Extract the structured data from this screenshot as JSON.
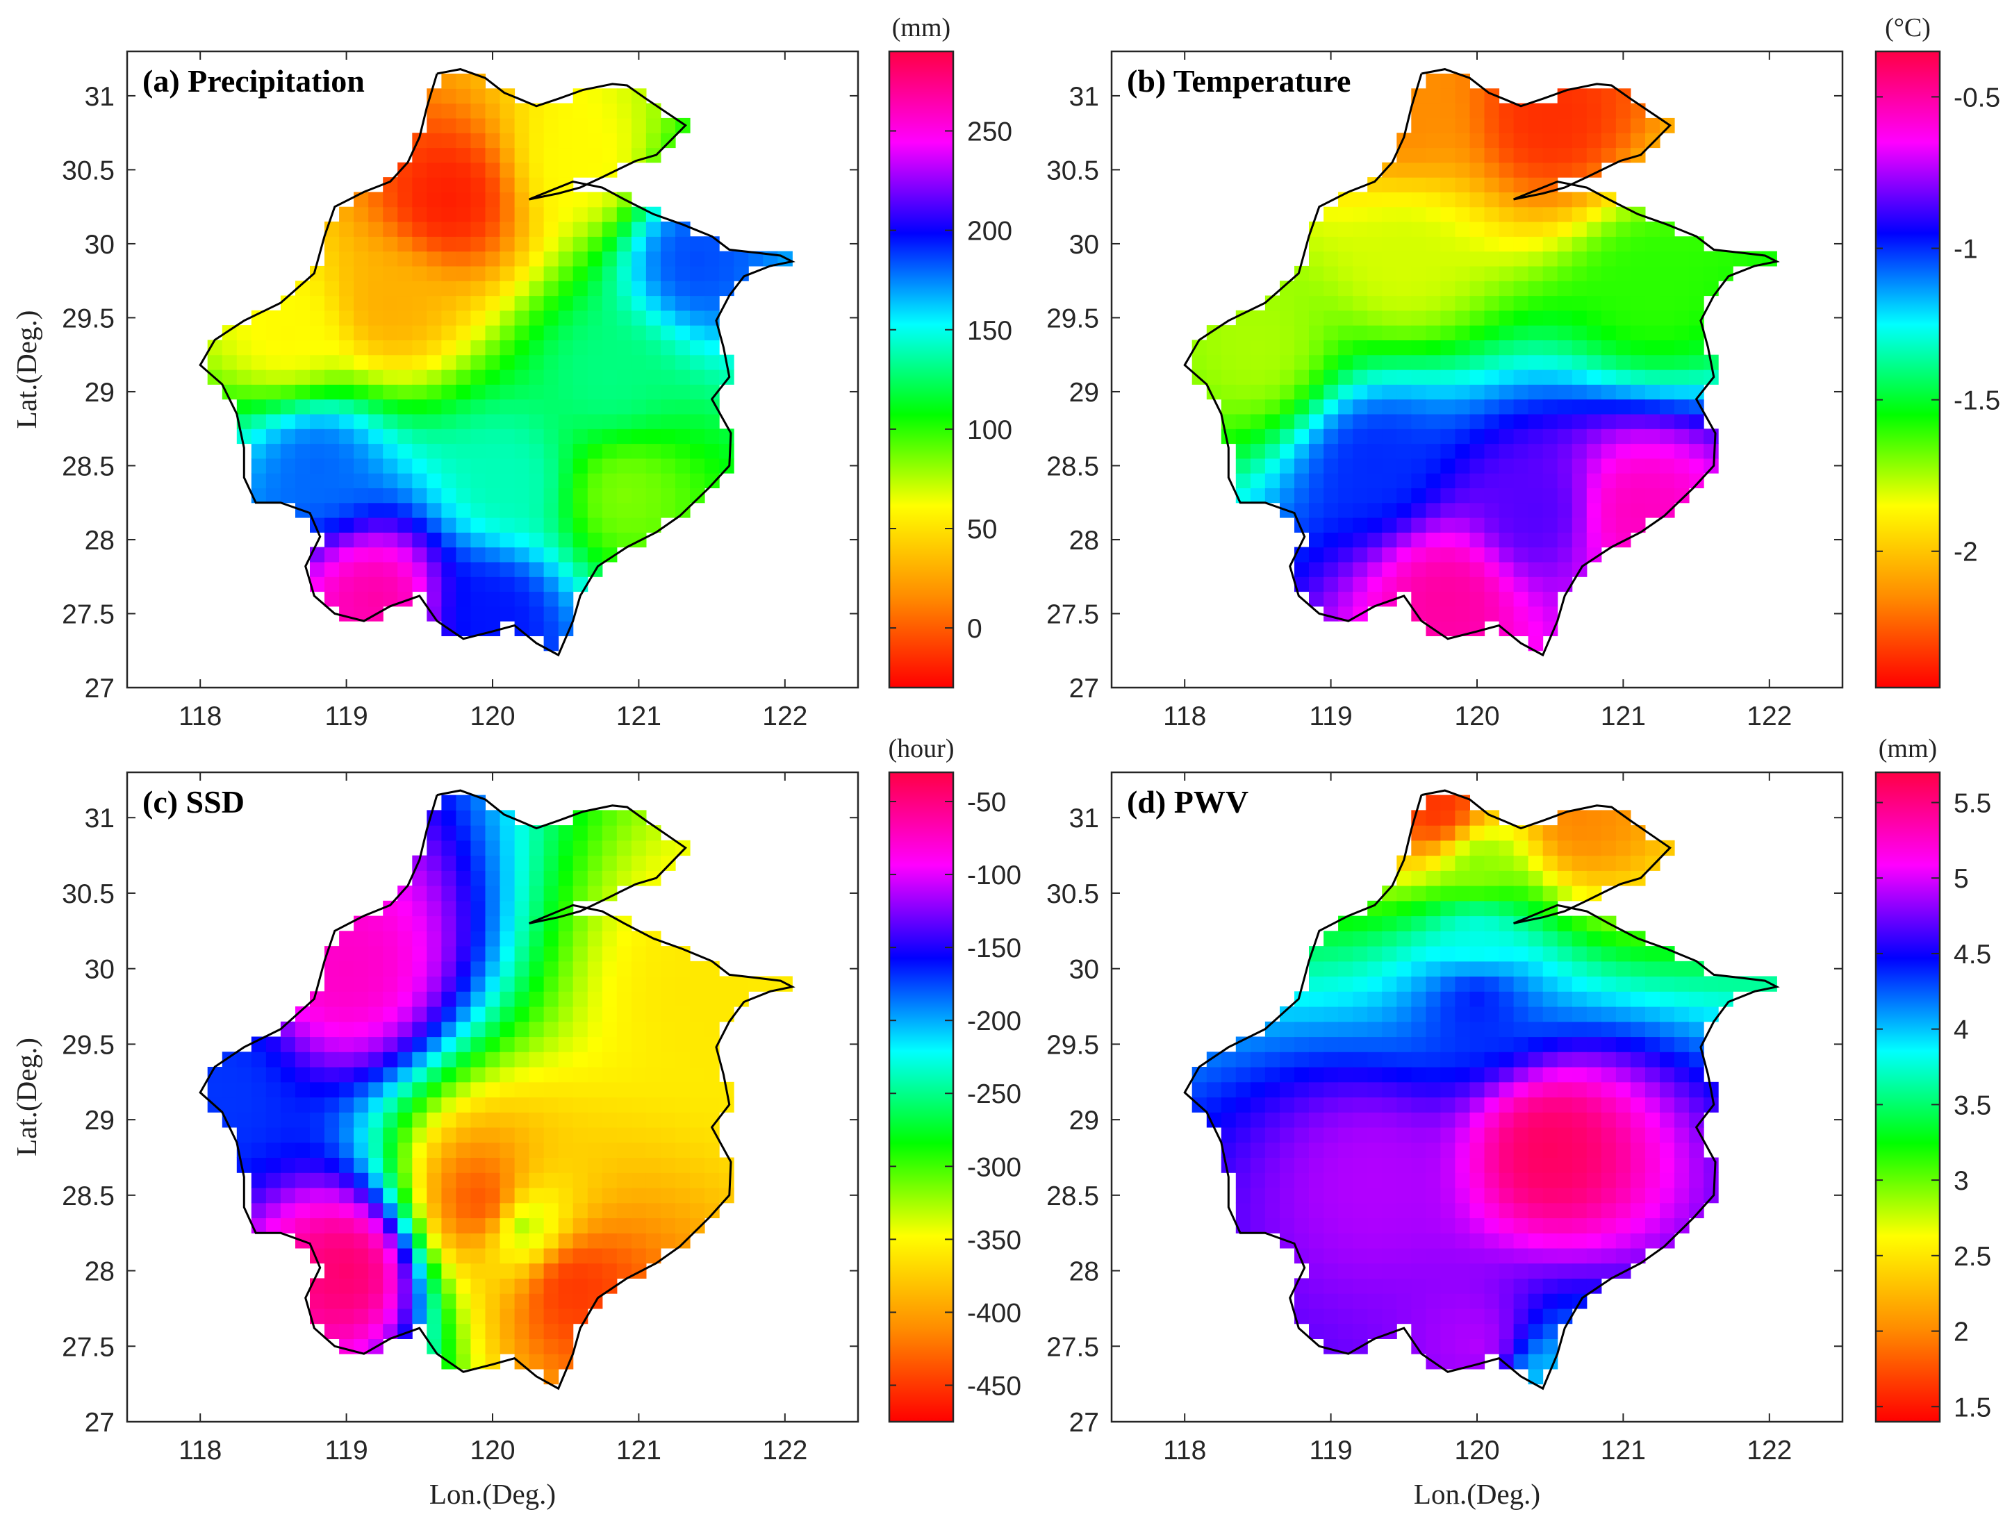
{
  "figure": {
    "xlabel": "Lon.(Deg.)",
    "ylabel": "Lat.(Deg.)"
  },
  "chart_data": [
    {
      "type": "heatmap",
      "title": "(a) Precipitation",
      "xlabel": "",
      "ylabel": "Lat.(Deg.)",
      "xlim": [
        117.5,
        122.5
      ],
      "ylim": [
        27,
        31.3
      ],
      "x_ticks": [
        "118",
        "119",
        "120",
        "121",
        "122"
      ],
      "y_ticks": [
        "27",
        "27.5",
        "28",
        "28.5",
        "29",
        "29.5",
        "30",
        "30.5",
        "31"
      ],
      "colorbar": {
        "unit": "(mm)",
        "range": [
          -30,
          290
        ],
        "ticks": [
          "0",
          "50",
          "100",
          "150",
          "200",
          "250"
        ]
      },
      "colormap": [
        "#ff0000",
        "#ff8c00",
        "#ffff00",
        "#00ff00",
        "#00ffff",
        "#0000ff",
        "#ff00ff",
        "#ff0044"
      ],
      "hotspots": [
        {
          "lon": 119.7,
          "lat": 30.3,
          "value": -20
        },
        {
          "lon": 119.3,
          "lat": 29.6,
          "value": 30
        },
        {
          "lon": 118.6,
          "lat": 29.4,
          "value": 60
        },
        {
          "lon": 120.6,
          "lat": 30.55,
          "value": 60
        },
        {
          "lon": 121.4,
          "lat": 29.9,
          "value": 185
        },
        {
          "lon": 120.8,
          "lat": 29.1,
          "value": 130
        },
        {
          "lon": 118.8,
          "lat": 28.5,
          "value": 180
        },
        {
          "lon": 119.2,
          "lat": 27.6,
          "value": 265
        },
        {
          "lon": 120.0,
          "lat": 27.5,
          "value": 195
        },
        {
          "lon": 120.9,
          "lat": 28.3,
          "value": 85
        },
        {
          "lon": 120.1,
          "lat": 28.4,
          "value": 140
        }
      ]
    },
    {
      "type": "heatmap",
      "title": "(b) Temperature",
      "xlabel": "",
      "ylabel": "",
      "xlim": [
        117.5,
        122.5
      ],
      "ylim": [
        27,
        31.3
      ],
      "x_ticks": [
        "118",
        "119",
        "120",
        "121",
        "122"
      ],
      "y_ticks": [
        "27",
        "27.5",
        "28",
        "28.5",
        "29",
        "29.5",
        "30",
        "30.5",
        "31"
      ],
      "colorbar": {
        "unit": "(°C)",
        "range": [
          -2.45,
          -0.35
        ],
        "ticks": [
          "-2",
          "-1.5",
          "-1",
          "-0.5"
        ]
      },
      "colormap": [
        "#ff0000",
        "#ff8c00",
        "#ffff00",
        "#00ff00",
        "#00ffff",
        "#0000ff",
        "#ff00ff",
        "#ff0044"
      ],
      "hotspots": [
        {
          "lon": 120.5,
          "lat": 30.85,
          "value": -2.35
        },
        {
          "lon": 119.5,
          "lat": 30.9,
          "value": -2.15
        },
        {
          "lon": 119.5,
          "lat": 29.9,
          "value": -1.8
        },
        {
          "lon": 118.5,
          "lat": 29.3,
          "value": -1.75
        },
        {
          "lon": 121.2,
          "lat": 29.7,
          "value": -1.6
        },
        {
          "lon": 119.3,
          "lat": 28.5,
          "value": -1.0
        },
        {
          "lon": 120.4,
          "lat": 28.2,
          "value": -0.85
        },
        {
          "lon": 119.8,
          "lat": 27.6,
          "value": -0.5
        },
        {
          "lon": 121.1,
          "lat": 28.2,
          "value": -0.55
        }
      ]
    },
    {
      "type": "heatmap",
      "title": "(c) SSD",
      "xlabel": "Lon.(Deg.)",
      "ylabel": "Lat.(Deg.)",
      "xlim": [
        117.5,
        122.5
      ],
      "ylim": [
        27,
        31.3
      ],
      "x_ticks": [
        "118",
        "119",
        "120",
        "121",
        "122"
      ],
      "y_ticks": [
        "27",
        "27.5",
        "28",
        "28.5",
        "29",
        "29.5",
        "30",
        "30.5",
        "31"
      ],
      "colorbar": {
        "unit": "(hour)",
        "range": [
          -475,
          -30
        ],
        "ticks": [
          "-450",
          "-400",
          "-350",
          "-300",
          "-250",
          "-200",
          "-150",
          "-100",
          "-50"
        ]
      },
      "colormap": [
        "#ff0000",
        "#ff8c00",
        "#ffff00",
        "#00ff00",
        "#00ffff",
        "#0000ff",
        "#ff00ff",
        "#ff0044"
      ],
      "hotspots": [
        {
          "lon": 119.0,
          "lat": 28.0,
          "value": -45
        },
        {
          "lon": 119.0,
          "lat": 30.0,
          "value": -75
        },
        {
          "lon": 119.95,
          "lat": 28.45,
          "value": -440
        },
        {
          "lon": 120.55,
          "lat": 27.9,
          "value": -450
        },
        {
          "lon": 120.2,
          "lat": 28.3,
          "value": -330
        },
        {
          "lon": 121.5,
          "lat": 29.85,
          "value": -360
        },
        {
          "lon": 118.1,
          "lat": 29.2,
          "value": -170
        }
      ]
    },
    {
      "type": "heatmap",
      "title": "(d) PWV",
      "xlabel": "Lon.(Deg.)",
      "ylabel": "",
      "xlim": [
        117.5,
        122.5
      ],
      "ylim": [
        27,
        31.3
      ],
      "x_ticks": [
        "118",
        "119",
        "120",
        "121",
        "122"
      ],
      "y_ticks": [
        "27",
        "27.5",
        "28",
        "28.5",
        "29",
        "29.5",
        "30",
        "30.5",
        "31"
      ],
      "colorbar": {
        "unit": "(mm)",
        "range": [
          1.4,
          5.7
        ],
        "ticks": [
          "1.5",
          "2",
          "2.5",
          "3",
          "3.5",
          "4",
          "4.5",
          "5",
          "5.5"
        ]
      },
      "colormap": [
        "#ff0000",
        "#ff8c00",
        "#ffff00",
        "#00ff00",
        "#00ffff",
        "#0000ff",
        "#ff00ff",
        "#ff0044"
      ],
      "hotspots": [
        {
          "lon": 119.75,
          "lat": 31.05,
          "value": 1.6
        },
        {
          "lon": 120.7,
          "lat": 31.0,
          "value": 2.0
        },
        {
          "lon": 120.0,
          "lat": 30.7,
          "value": 2.9
        },
        {
          "lon": 120.0,
          "lat": 30.2,
          "value": 3.8
        },
        {
          "lon": 120.0,
          "lat": 29.8,
          "value": 4.4
        },
        {
          "lon": 120.5,
          "lat": 28.8,
          "value": 5.6
        },
        {
          "lon": 119.3,
          "lat": 28.6,
          "value": 4.9
        },
        {
          "lon": 120.0,
          "lat": 27.5,
          "value": 4.9
        },
        {
          "lon": 120.45,
          "lat": 27.25,
          "value": 4.0
        }
      ]
    }
  ]
}
